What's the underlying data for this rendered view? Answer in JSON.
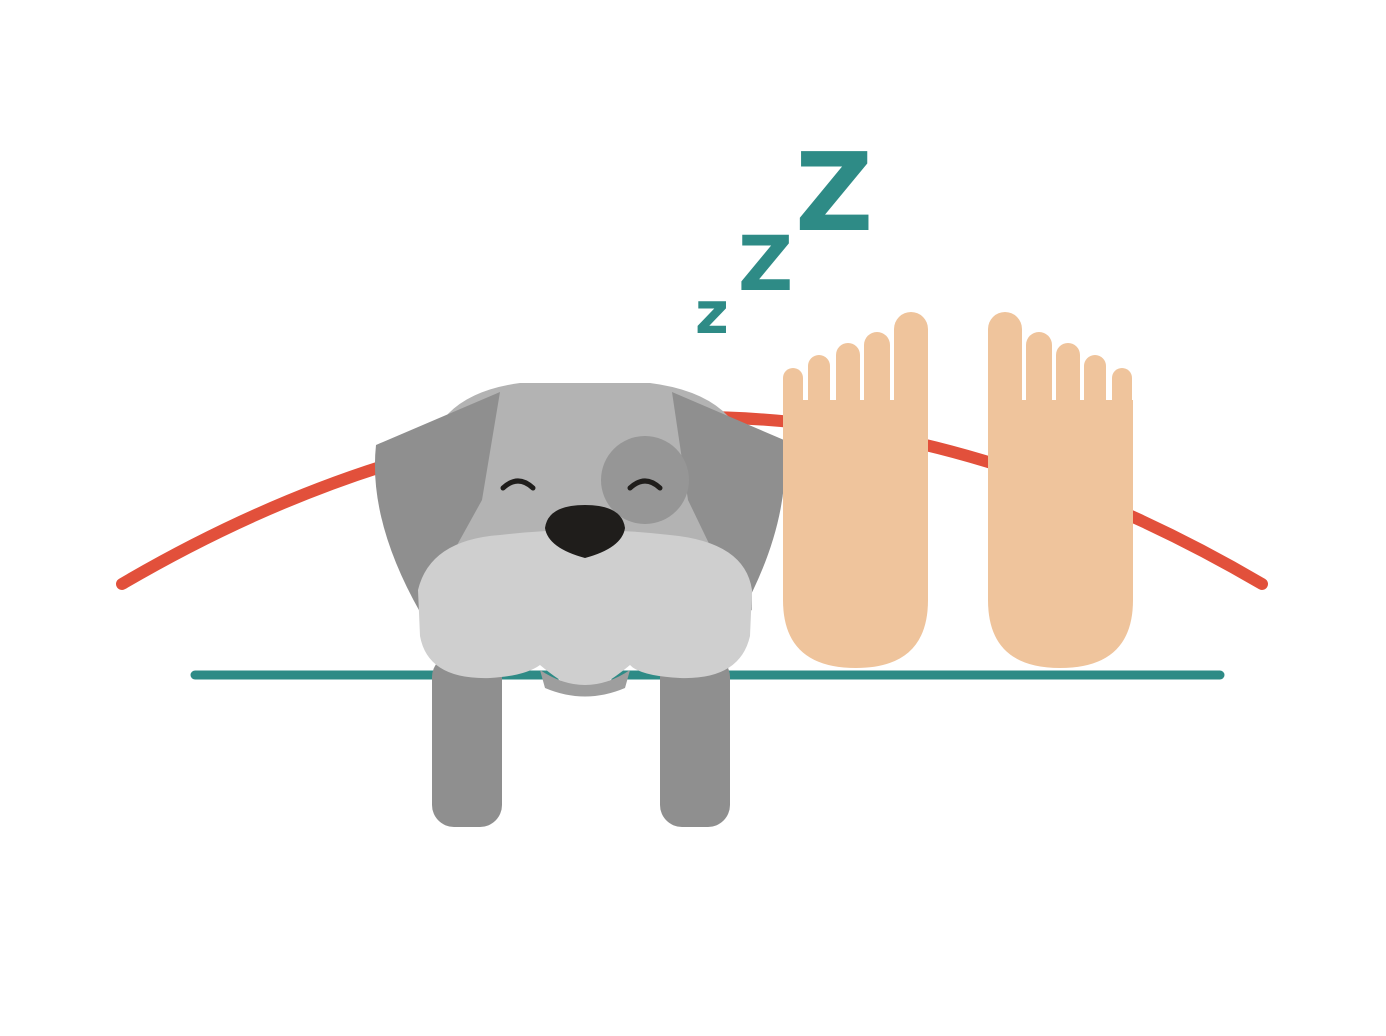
{
  "illustration": {
    "zzz": [
      "z",
      "Z",
      "Z"
    ]
  },
  "colors": {
    "background": "#ffffff",
    "arc": "#e2503b",
    "ground_line": "#2e8b86",
    "zzz": "#2e8b86",
    "dog_fur_light": "#cfcfcf",
    "dog_fur_mid": "#b3b3b3",
    "dog_fur_dark": "#8f8f8f",
    "dog_nose": "#1f1d1b",
    "feet_skin": "#efc49c"
  },
  "icons": [
    "sleeping-dog-icon",
    "bare-feet-icon",
    "zzz-sleep-icon",
    "blanket-arc",
    "bed-line"
  ]
}
